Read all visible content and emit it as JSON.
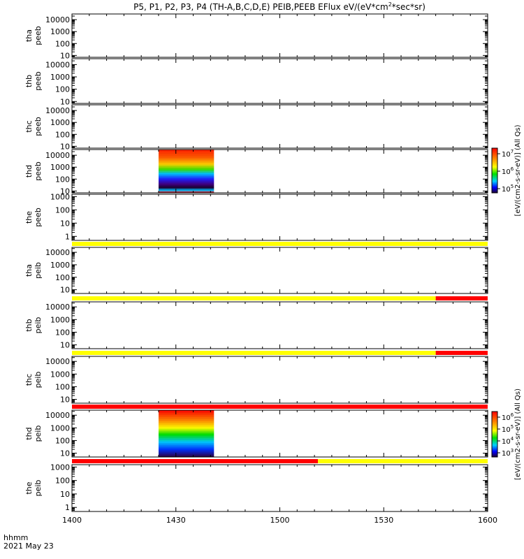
{
  "title": "P5, P1, P2, P3, P4 (TH-A,B,C,D,E) PEIB,PEEB EFlux eV/(eV*cm",
  "title_sup": "2",
  "title_tail": "*sec*sr)",
  "time_axis": {
    "corner_label_1": "hhmm",
    "corner_label_2": "2021 May 23",
    "ticks": [
      "1400",
      "1430",
      "1500",
      "1530",
      "1600"
    ]
  },
  "colors": {
    "quality_yellow": "#ffff00",
    "quality_red": "#ff0000"
  },
  "colorbar_peeb": {
    "label": "[eV/(cm2-s-sr-eV)] (All Qs)",
    "ticks": [
      {
        "base": "10",
        "exp": "7"
      },
      {
        "base": "10",
        "exp": "6"
      },
      {
        "base": "10",
        "exp": "5"
      }
    ]
  },
  "colorbar_peib": {
    "label": "[eV/(cm2-s-sr-eV)] (All Qs)",
    "ticks": [
      {
        "base": "10",
        "exp": "6"
      },
      {
        "base": "10",
        "exp": "5"
      },
      {
        "base": "10",
        "exp": "4"
      },
      {
        "base": "10",
        "exp": "3"
      }
    ]
  },
  "chart_data": [
    {
      "type": "heatmap",
      "probe": "tha",
      "product": "peeb",
      "ylabel_1": "tha",
      "ylabel_2": "peeb",
      "ylog": true,
      "yticks": [
        "10000",
        "1000",
        "100",
        "10"
      ],
      "data_present": false
    },
    {
      "type": "heatmap",
      "probe": "thb",
      "product": "peeb",
      "ylabel_1": "thb",
      "ylabel_2": "peeb",
      "ylog": true,
      "yticks": [
        "10000",
        "1000",
        "100",
        "10"
      ],
      "data_present": false
    },
    {
      "type": "heatmap",
      "probe": "thc",
      "product": "peeb",
      "ylabel_1": "thc",
      "ylabel_2": "peeb",
      "ylog": true,
      "yticks": [
        "10000",
        "1000",
        "100",
        "10"
      ],
      "data_present": false
    },
    {
      "type": "heatmap",
      "probe": "thd",
      "product": "peeb",
      "ylabel_1": "thd",
      "ylabel_2": "peeb",
      "ylog": true,
      "yticks": [
        "10000",
        "1000",
        "100",
        "10"
      ],
      "data_present": true,
      "data_interval_hhmm": [
        "1425",
        "1441"
      ],
      "colorbar": "colorbar_peeb"
    },
    {
      "type": "heatmap",
      "probe": "the",
      "product": "peeb",
      "ylabel_1": "the",
      "ylabel_2": "peeb",
      "ylog": true,
      "yticks": [
        "1000",
        "100",
        "10",
        "1"
      ],
      "data_present": false,
      "quality_bar": [
        {
          "from": "1400",
          "to": "1600",
          "flag": "yellow"
        }
      ]
    },
    {
      "type": "heatmap",
      "probe": "tha",
      "product": "peib",
      "ylabel_1": "tha",
      "ylabel_2": "peib",
      "ylog": true,
      "yticks": [
        "10000",
        "1000",
        "100",
        "10"
      ],
      "data_present": false,
      "quality_bar": [
        {
          "from": "1400",
          "to": "1545",
          "flag": "yellow"
        },
        {
          "from": "1545",
          "to": "1600",
          "flag": "red"
        }
      ]
    },
    {
      "type": "heatmap",
      "probe": "thb",
      "product": "peib",
      "ylabel_1": "thb",
      "ylabel_2": "peib",
      "ylog": true,
      "yticks": [
        "10000",
        "1000",
        "100",
        "10"
      ],
      "data_present": false,
      "quality_bar": [
        {
          "from": "1400",
          "to": "1545",
          "flag": "yellow"
        },
        {
          "from": "1545",
          "to": "1600",
          "flag": "red"
        }
      ]
    },
    {
      "type": "heatmap",
      "probe": "thc",
      "product": "peib",
      "ylabel_1": "thc",
      "ylabel_2": "peib",
      "ylog": true,
      "yticks": [
        "10000",
        "1000",
        "100",
        "10"
      ],
      "data_present": false,
      "quality_bar": [
        {
          "from": "1400",
          "to": "1600",
          "flag": "red"
        }
      ]
    },
    {
      "type": "heatmap",
      "probe": "thd",
      "product": "peib",
      "ylabel_1": "thd",
      "ylabel_2": "peib",
      "ylog": true,
      "yticks": [
        "10000",
        "1000",
        "100",
        "10"
      ],
      "data_present": true,
      "data_interval_hhmm": [
        "1425",
        "1441"
      ],
      "colorbar": "colorbar_peib",
      "quality_bar": [
        {
          "from": "1400",
          "to": "1511",
          "flag": "red"
        },
        {
          "from": "1511",
          "to": "1600",
          "flag": "yellow"
        }
      ]
    },
    {
      "type": "heatmap",
      "probe": "the",
      "product": "peib",
      "ylabel_1": "the",
      "ylabel_2": "peib",
      "ylog": true,
      "yticks": [
        "1000",
        "100",
        "10",
        "1"
      ],
      "data_present": false
    }
  ]
}
